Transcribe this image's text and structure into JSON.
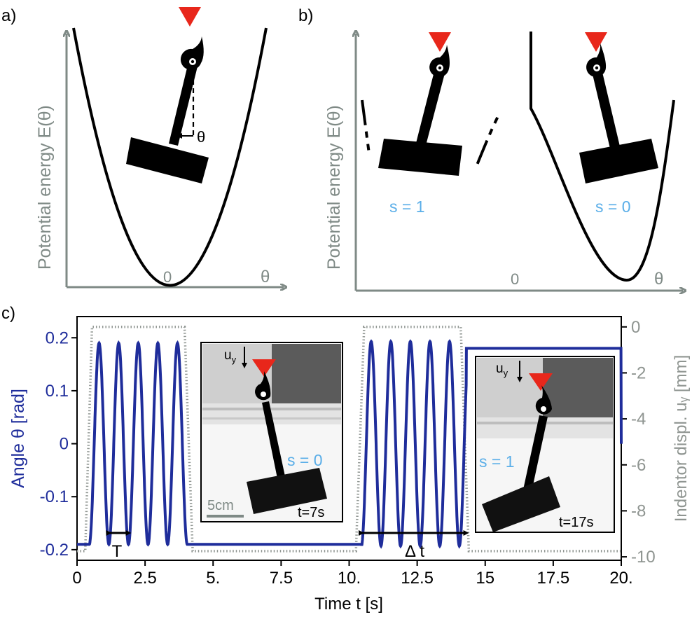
{
  "panels": {
    "a": {
      "label": "a)",
      "ylabel": "Potential energy E(θ)",
      "xlabel": "θ",
      "zero_label": "0",
      "angle_label": "θ"
    },
    "b": {
      "label": "b)",
      "ylabel": "Potential energy E(θ)",
      "xlabel": "θ",
      "zero_label": "0",
      "state_left": "s = 1",
      "state_right": "s = 0"
    },
    "c": {
      "label": "c)",
      "period_label": "T",
      "delta_label": "Δ t",
      "inset_left": {
        "uy": "uy",
        "state": "s = 0",
        "time": "t=7s",
        "scale": "5cm"
      },
      "inset_right": {
        "uy": "uy",
        "state": "s = 1",
        "time": "t=17s"
      }
    }
  },
  "colors": {
    "axis_gray": "#7f8a86",
    "angle_blue": "#1f2d9b",
    "indentor_gray": "#8f9591",
    "state_blue": "#5aaee8",
    "indenter_red": "#e8271b"
  },
  "chart_data": {
    "type": "line",
    "xlabel": "Time t [s]",
    "ylabel": "Angle θ [rad]",
    "y2label": "Indentor displ. uᵧ [mm]",
    "xlim": [
      0,
      20
    ],
    "ylim": [
      -0.22,
      0.24
    ],
    "y2lim": [
      -10.15,
      0.45
    ],
    "xticks": [
      "0",
      "2.5",
      "5.",
      "7.5",
      "10.",
      "12.5",
      "15",
      "17.5",
      "20."
    ],
    "yticks": [
      "0.2",
      "0.1",
      "0",
      "-0.1",
      "-0.2"
    ],
    "y2ticks": [
      "0",
      "-2",
      "-4",
      "-6",
      "-8",
      "-10"
    ],
    "series": [
      {
        "axis": "left",
        "oscillation_windows": [
          {
            "start": 0.45,
            "end": 4.05,
            "amplitude": 0.19,
            "center": 0,
            "period": 0.72
          },
          {
            "start": 10.45,
            "end": 14.3,
            "amplitude": 0.193,
            "center": 0,
            "period": 0.72
          }
        ],
        "rest_levels": [
          {
            "from": 0,
            "to": 0.45,
            "value": -0.19
          },
          {
            "from": 4.05,
            "to": 10.45,
            "value": -0.19
          },
          {
            "from": 14.3,
            "to": 20,
            "value": 0.18
          }
        ]
      },
      {
        "axis": "right",
        "points": [
          [
            0,
            -9.75
          ],
          [
            0.3,
            -9.75
          ],
          [
            0.55,
            0.0
          ],
          [
            3.95,
            0.0
          ],
          [
            4.25,
            -9.75
          ],
          [
            10.25,
            -9.75
          ],
          [
            10.55,
            0.0
          ],
          [
            14.1,
            0.0
          ],
          [
            14.4,
            -9.75
          ],
          [
            20,
            -9.75
          ]
        ]
      }
    ]
  }
}
